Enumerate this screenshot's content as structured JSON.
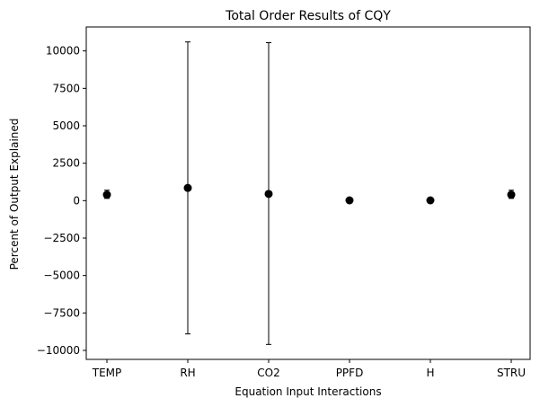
{
  "chart_data": {
    "type": "scatter",
    "title": "Total Order Results of CQY",
    "xlabel": "Equation Input Interactions",
    "ylabel": "Percent of Output Explained",
    "categories": [
      "TEMP",
      "RH",
      "CO2",
      "PPFD",
      "H",
      "STRU"
    ],
    "points": [
      {
        "category": "TEMP",
        "value": 400,
        "err_low": 150,
        "err_high": 700
      },
      {
        "category": "RH",
        "value": 850,
        "err_low": -8900,
        "err_high": 10600
      },
      {
        "category": "CO2",
        "value": 450,
        "err_low": -9600,
        "err_high": 10550
      },
      {
        "category": "PPFD",
        "value": 20,
        "err_low": -30,
        "err_high": 70
      },
      {
        "category": "H",
        "value": 20,
        "err_low": -30,
        "err_high": 70
      },
      {
        "category": "STRU",
        "value": 400,
        "err_low": 150,
        "err_high": 700
      }
    ],
    "ylim": [
      -10600,
      11600
    ],
    "yticks": [
      -10000,
      -7500,
      -5000,
      -2500,
      0,
      2500,
      5000,
      7500,
      10000
    ],
    "ytick_labels": [
      "−10000",
      "−7500",
      "−5000",
      "−2500",
      "0",
      "2500",
      "5000",
      "7500",
      "10000"
    ],
    "grid": false,
    "marker_color": "#000000"
  }
}
